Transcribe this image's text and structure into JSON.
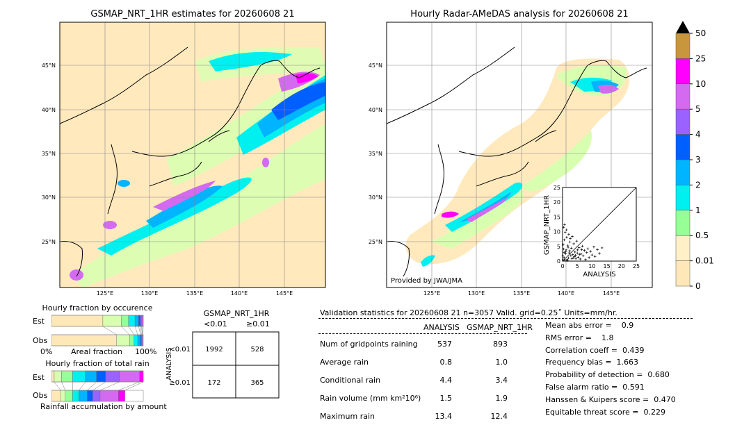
{
  "left_map": {
    "title": "GSMAP_NRT_1HR estimates for 20260608 21",
    "lat_labels": [
      "45°N",
      "40°N",
      "35°N",
      "30°N",
      "25°N"
    ],
    "lon_labels": [
      "125°E",
      "130°E",
      "135°E",
      "140°E",
      "145°E"
    ]
  },
  "right_map": {
    "title": "Hourly Radar-AMeDAS analysis for 20260608 21",
    "lat_labels": [
      "45°N",
      "40°N",
      "35°N",
      "30°N",
      "25°N"
    ],
    "lon_labels": [
      "125°E",
      "130°E",
      "135°E",
      "140°E",
      "145°E"
    ],
    "credit": "Provided by JWA/JMA"
  },
  "colorbar": {
    "labels": [
      "50",
      "25",
      "10",
      "5",
      "4",
      "3",
      "2",
      "1",
      "0.5",
      "0.01",
      "0"
    ],
    "colors": [
      "#c8963c",
      "#ff00ff",
      "#d36af0",
      "#9a62ff",
      "#0060ff",
      "#00b4ff",
      "#00f0f0",
      "#96ff96",
      "#fff0c8",
      "#ffe8b8"
    ]
  },
  "scatter": {
    "xlabel": "ANALYSIS",
    "ylabel": "GSMAP_NRT_1HR",
    "ticks": [
      "0",
      "5",
      "10",
      "15",
      "20",
      "25"
    ]
  },
  "occurrence": {
    "title": "Hourly fraction by occurence",
    "est_label": "Est",
    "obs_label": "Obs",
    "axis_left": "0%",
    "axis_mid": "Areal fraction",
    "axis_right": "100%"
  },
  "total_rain": {
    "title": "Hourly fraction of total rain",
    "est_label": "Est",
    "obs_label": "Obs",
    "axis_title": "Rainfall accumulation by amount"
  },
  "contingency": {
    "title": "GSMAP_NRT_1HR",
    "col_lt": "<0.01",
    "col_ge": "≥0.01",
    "row_axis": "ANALYSIS",
    "row_lt": "<0.01",
    "row_ge": "≥0.01",
    "cells": [
      "1992",
      "528",
      "172",
      "365"
    ]
  },
  "validation": {
    "header": "Validation statistics for 20260608 21  n=3057 Valid. grid=0.25˚ Units=mm/hr.",
    "col_analysis": "ANALYSIS",
    "col_gsmap": "GSMAP_NRT_1HR",
    "rows": [
      {
        "label": "Num of gridpoints raining",
        "analysis": "537",
        "gsmap": "893"
      },
      {
        "label": "Average rain",
        "analysis": "0.8",
        "gsmap": "1.0"
      },
      {
        "label": "Conditional rain",
        "analysis": "4.4",
        "gsmap": "3.4"
      },
      {
        "label": "Rain volume (mm km²10⁶)",
        "analysis": "1.5",
        "gsmap": "1.9"
      },
      {
        "label": "Maximum rain",
        "analysis": "13.4",
        "gsmap": "12.4"
      }
    ],
    "scores": [
      "Mean abs error =    0.9",
      "RMS error =    1.8",
      "Correlation coeff =  0.439",
      "Frequency bias =  1.663",
      "Probability of detection =  0.680",
      "False alarm ratio =  0.591",
      "Hanssen & Kuipers score =  0.470",
      "Equitable threat score =  0.229"
    ]
  },
  "chart_data": [
    {
      "type": "heatmap",
      "title": "GSMAP_NRT_1HR estimates for 20260608 21",
      "xlim": [
        120,
        149.5
      ],
      "ylim": [
        20,
        49.5
      ],
      "x_ticks": [
        125,
        130,
        135,
        140,
        145
      ],
      "y_ticks": [
        25,
        30,
        35,
        40,
        45
      ],
      "units": "mm/hr"
    },
    {
      "type": "heatmap",
      "title": "Hourly Radar-AMeDAS analysis for 20260608 21",
      "xlim": [
        120,
        149.5
      ],
      "ylim": [
        20,
        49.5
      ],
      "x_ticks": [
        125,
        130,
        135,
        140,
        145
      ],
      "y_ticks": [
        25,
        30,
        35,
        40,
        45
      ],
      "units": "mm/hr"
    },
    {
      "type": "scatter",
      "xlabel": "ANALYSIS",
      "ylabel": "GSMAP_NRT_1HR",
      "xlim": [
        0,
        25
      ],
      "ylim": [
        0,
        25
      ],
      "ticks": [
        0,
        5,
        10,
        15,
        20,
        25
      ],
      "points": [
        [
          0.2,
          0.3
        ],
        [
          0.5,
          1.2
        ],
        [
          0.8,
          0.4
        ],
        [
          1,
          2.5
        ],
        [
          1.2,
          3.8
        ],
        [
          1.5,
          0.6
        ],
        [
          1.8,
          5.2
        ],
        [
          2,
          1.1
        ],
        [
          2.2,
          2.8
        ],
        [
          2.5,
          6.5
        ],
        [
          0.3,
          4.1
        ],
        [
          0.6,
          7.2
        ],
        [
          0.9,
          9.8
        ],
        [
          1.1,
          3.2
        ],
        [
          1.4,
          8.1
        ],
        [
          2.8,
          1.9
        ],
        [
          3,
          4.4
        ],
        [
          3.2,
          0.8
        ],
        [
          3.5,
          2.2
        ],
        [
          3.8,
          5.9
        ],
        [
          4,
          1.5
        ],
        [
          4.2,
          3.1
        ],
        [
          4.5,
          0.9
        ],
        [
          4.8,
          6.8
        ],
        [
          5,
          2.7
        ],
        [
          5.3,
          1.3
        ],
        [
          5.6,
          4.6
        ],
        [
          6,
          0.7
        ],
        [
          6.3,
          2.4
        ],
        [
          6.7,
          5.1
        ],
        [
          7,
          1.8
        ],
        [
          7.4,
          3.6
        ],
        [
          7.8,
          0.5
        ],
        [
          8.2,
          2.9
        ],
        [
          8.6,
          4.2
        ],
        [
          9,
          1.2
        ],
        [
          9.5,
          3.3
        ],
        [
          10,
          2.1
        ],
        [
          10.6,
          4.8
        ],
        [
          11,
          1.6
        ],
        [
          11.8,
          3.9
        ],
        [
          12.5,
          2.6
        ],
        [
          13.4,
          4.5
        ],
        [
          0.4,
          11.5
        ],
        [
          0.7,
          12.4
        ],
        [
          1.3,
          10.6
        ],
        [
          2.1,
          9.1
        ],
        [
          2.6,
          7.7
        ],
        [
          3.3,
          8.4
        ],
        [
          1.6,
          0.2
        ],
        [
          0.1,
          1.8
        ],
        [
          0.2,
          5.6
        ],
        [
          0.5,
          2.9
        ],
        [
          1.9,
          4.7
        ],
        [
          2.4,
          3.5
        ],
        [
          3.6,
          1.1
        ],
        [
          4.4,
          2
        ],
        [
          5.1,
          3.8
        ],
        [
          5.8,
          2.3
        ],
        [
          6.5,
          3.9
        ]
      ]
    },
    {
      "type": "table",
      "title": "GSMAP_NRT_1HR",
      "columns": [
        "<0.01",
        "≥0.01"
      ],
      "rows": [
        "<0.01",
        "≥0.01"
      ],
      "values": [
        [
          1992,
          528
        ],
        [
          172,
          365
        ]
      ]
    },
    {
      "type": "bar",
      "title": "Hourly fraction by occurence",
      "categories": [
        "Est",
        "Obs"
      ],
      "series": [
        {
          "color": "#ffe8b8",
          "values": [
            0.56,
            0.71
          ]
        },
        {
          "color": "#d8ffb0",
          "values": [
            0.2,
            0.14
          ]
        },
        {
          "color": "#96ff96",
          "values": [
            0.08,
            0.05
          ]
        },
        {
          "color": "#00f0f0",
          "values": [
            0.07,
            0.04
          ]
        },
        {
          "color": "#00b4ff",
          "values": [
            0.04,
            0.03
          ]
        },
        {
          "color": "#0060ff",
          "values": [
            0.02,
            0.01
          ]
        },
        {
          "color": "#9a62ff",
          "values": [
            0.01,
            0.01
          ]
        },
        {
          "color": "#d36af0",
          "values": [
            0.015,
            0.005
          ]
        },
        {
          "color": "#ff00ff",
          "values": [
            0.005,
            0.0
          ]
        }
      ]
    },
    {
      "type": "bar",
      "title": "Hourly fraction of total rain",
      "categories": [
        "Est",
        "Obs"
      ],
      "series": [
        {
          "color": "#ffe8b8",
          "values": [
            0.03,
            0.1
          ]
        },
        {
          "color": "#d8ffb0",
          "values": [
            0.08,
            0.05
          ]
        },
        {
          "color": "#96ff96",
          "values": [
            0.12,
            0.08
          ]
        },
        {
          "color": "#00f0f0",
          "values": [
            0.14,
            0.07
          ]
        },
        {
          "color": "#00b4ff",
          "values": [
            0.12,
            0.09
          ]
        },
        {
          "color": "#0060ff",
          "values": [
            0.1,
            0.06
          ]
        },
        {
          "color": "#9a62ff",
          "values": [
            0.15,
            0.08
          ]
        },
        {
          "color": "#d36af0",
          "values": [
            0.22,
            0.2
          ]
        },
        {
          "color": "#ff00ff",
          "values": [
            0.04,
            0.07
          ]
        }
      ]
    }
  ]
}
